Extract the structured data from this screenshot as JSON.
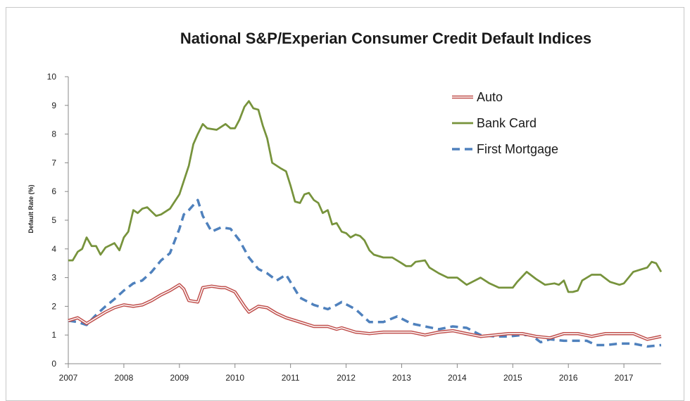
{
  "chart_data": {
    "type": "line",
    "title": "National S&P/Experian Consumer Credit Default Indices",
    "xlabel": "",
    "ylabel": "Default Rate (%)",
    "ylim": [
      0,
      10
    ],
    "xlim": [
      2007,
      2017.67
    ],
    "yticks": [
      "0",
      "1",
      "2",
      "3",
      "4",
      "5",
      "6",
      "7",
      "8",
      "9",
      "10"
    ],
    "xticks": [
      "2007",
      "2008",
      "2009",
      "2010",
      "2011",
      "2012",
      "2013",
      "2014",
      "2015",
      "2016",
      "2017"
    ],
    "legend_position": "top-right",
    "grid": false,
    "series": [
      {
        "name": "Auto",
        "color": "#c0504d",
        "style": "double",
        "x": [
          2007.0,
          2007.17,
          2007.33,
          2007.5,
          2007.67,
          2007.83,
          2008.0,
          2008.17,
          2008.33,
          2008.5,
          2008.67,
          2008.83,
          2009.0,
          2009.08,
          2009.17,
          2009.33,
          2009.42,
          2009.58,
          2009.75,
          2009.83,
          2010.0,
          2010.17,
          2010.25,
          2010.42,
          2010.58,
          2010.75,
          2010.92,
          2011.17,
          2011.42,
          2011.67,
          2011.83,
          2011.92,
          2012.17,
          2012.42,
          2012.67,
          2012.92,
          2013.17,
          2013.42,
          2013.67,
          2013.92,
          2014.17,
          2014.42,
          2014.67,
          2014.92,
          2015.17,
          2015.42,
          2015.67,
          2015.92,
          2016.17,
          2016.42,
          2016.67,
          2016.92,
          2017.17,
          2017.42,
          2017.67
        ],
        "values": [
          1.5,
          1.6,
          1.4,
          1.6,
          1.8,
          1.95,
          2.05,
          2.0,
          2.05,
          2.2,
          2.4,
          2.55,
          2.75,
          2.6,
          2.2,
          2.15,
          2.65,
          2.7,
          2.65,
          2.65,
          2.5,
          2.0,
          1.8,
          2.0,
          1.95,
          1.75,
          1.6,
          1.45,
          1.3,
          1.3,
          1.2,
          1.25,
          1.1,
          1.05,
          1.1,
          1.1,
          1.1,
          1.0,
          1.1,
          1.15,
          1.05,
          0.95,
          1.0,
          1.05,
          1.05,
          0.95,
          0.9,
          1.05,
          1.05,
          0.95,
          1.05,
          1.05,
          1.05,
          0.85,
          0.95
        ]
      },
      {
        "name": "Bank Card",
        "color": "#77933c",
        "style": "solid",
        "x": [
          2007.0,
          2007.08,
          2007.17,
          2007.25,
          2007.33,
          2007.42,
          2007.5,
          2007.58,
          2007.67,
          2007.83,
          2007.92,
          2008.0,
          2008.08,
          2008.17,
          2008.25,
          2008.33,
          2008.42,
          2008.5,
          2008.58,
          2008.67,
          2008.83,
          2009.0,
          2009.17,
          2009.25,
          2009.33,
          2009.42,
          2009.5,
          2009.67,
          2009.83,
          2009.92,
          2010.0,
          2010.08,
          2010.17,
          2010.25,
          2010.33,
          2010.42,
          2010.5,
          2010.58,
          2010.67,
          2010.83,
          2010.92,
          2011.0,
          2011.08,
          2011.17,
          2011.25,
          2011.33,
          2011.42,
          2011.5,
          2011.58,
          2011.67,
          2011.75,
          2011.83,
          2011.92,
          2012.0,
          2012.08,
          2012.17,
          2012.25,
          2012.33,
          2012.42,
          2012.5,
          2012.67,
          2012.83,
          2013.0,
          2013.08,
          2013.17,
          2013.25,
          2013.42,
          2013.5,
          2013.67,
          2013.83,
          2014.0,
          2014.17,
          2014.42,
          2014.58,
          2014.75,
          2014.92,
          2015.0,
          2015.08,
          2015.25,
          2015.42,
          2015.58,
          2015.75,
          2015.83,
          2015.92,
          2016.0,
          2016.08,
          2016.17,
          2016.25,
          2016.42,
          2016.58,
          2016.75,
          2016.92,
          2017.0,
          2017.17,
          2017.33,
          2017.42,
          2017.5,
          2017.58,
          2017.67
        ],
        "values": [
          3.6,
          3.6,
          3.9,
          4.0,
          4.4,
          4.1,
          4.1,
          3.8,
          4.05,
          4.2,
          3.95,
          4.4,
          4.6,
          5.35,
          5.25,
          5.4,
          5.45,
          5.3,
          5.15,
          5.2,
          5.4,
          5.9,
          6.9,
          7.65,
          8.0,
          8.35,
          8.2,
          8.15,
          8.35,
          8.2,
          8.2,
          8.5,
          8.95,
          9.15,
          8.9,
          8.85,
          8.3,
          7.85,
          7.0,
          6.8,
          6.7,
          6.2,
          5.65,
          5.6,
          5.9,
          5.95,
          5.7,
          5.6,
          5.25,
          5.35,
          4.85,
          4.9,
          4.6,
          4.55,
          4.4,
          4.5,
          4.45,
          4.3,
          3.95,
          3.8,
          3.7,
          3.7,
          3.5,
          3.4,
          3.4,
          3.55,
          3.6,
          3.35,
          3.15,
          3.0,
          3.0,
          2.75,
          3.0,
          2.8,
          2.65,
          2.65,
          2.65,
          2.85,
          3.2,
          2.95,
          2.75,
          2.8,
          2.75,
          2.9,
          2.5,
          2.5,
          2.55,
          2.9,
          3.1,
          3.1,
          2.85,
          2.75,
          2.8,
          3.2,
          3.3,
          3.35,
          3.55,
          3.5,
          3.2
        ]
      },
      {
        "name": "First Mortgage",
        "color": "#4f81bd",
        "style": "dashed",
        "x": [
          2007.0,
          2007.17,
          2007.33,
          2007.5,
          2007.67,
          2007.83,
          2008.0,
          2008.17,
          2008.33,
          2008.5,
          2008.67,
          2008.83,
          2009.0,
          2009.08,
          2009.17,
          2009.33,
          2009.42,
          2009.58,
          2009.75,
          2009.92,
          2010.08,
          2010.25,
          2010.42,
          2010.58,
          2010.75,
          2010.92,
          2011.17,
          2011.42,
          2011.67,
          2011.83,
          2011.92,
          2012.17,
          2012.42,
          2012.67,
          2012.92,
          2013.17,
          2013.42,
          2013.67,
          2013.92,
          2014.17,
          2014.42,
          2014.67,
          2014.92,
          2015.17,
          2015.33,
          2015.5,
          2015.67,
          2015.92,
          2016.17,
          2016.33,
          2016.5,
          2016.67,
          2016.92,
          2017.17,
          2017.42,
          2017.67
        ],
        "values": [
          1.5,
          1.45,
          1.35,
          1.7,
          2.0,
          2.25,
          2.55,
          2.8,
          2.9,
          3.2,
          3.6,
          3.85,
          4.7,
          5.2,
          5.35,
          5.7,
          5.15,
          4.6,
          4.75,
          4.7,
          4.3,
          3.7,
          3.3,
          3.15,
          2.9,
          3.1,
          2.3,
          2.05,
          1.9,
          2.05,
          2.15,
          1.9,
          1.45,
          1.45,
          1.65,
          1.4,
          1.3,
          1.2,
          1.3,
          1.25,
          1.0,
          0.95,
          0.95,
          1.0,
          1.0,
          0.75,
          0.85,
          0.8,
          0.8,
          0.8,
          0.65,
          0.65,
          0.7,
          0.7,
          0.6,
          0.65
        ]
      }
    ]
  }
}
